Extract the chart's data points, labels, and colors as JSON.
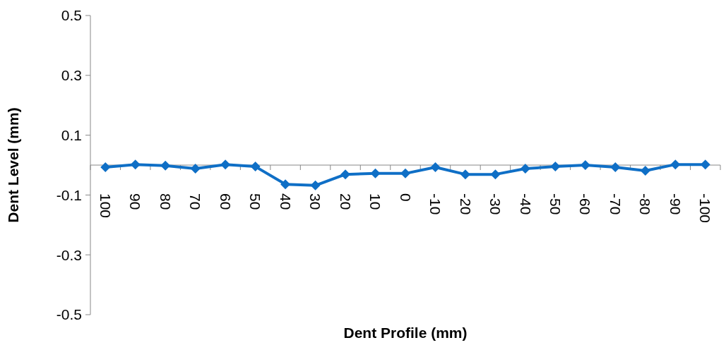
{
  "chart_data": {
    "type": "line",
    "xlabel": "Dent Profile (mm)",
    "ylabel": "Dent Level (mm)",
    "categories": [
      "100",
      "90",
      "80",
      "70",
      "60",
      "50",
      "40",
      "30",
      "20",
      "10",
      "0",
      "-10",
      "-20",
      "-30",
      "-40",
      "-50",
      "-60",
      "-70",
      "-80",
      "-90",
      "-100"
    ],
    "series": [
      {
        "color": "#0f6fc6",
        "values": [
          -0.007,
          0.002,
          -0.002,
          -0.012,
          0.002,
          -0.005,
          -0.064,
          -0.068,
          -0.031,
          -0.028,
          -0.028,
          -0.007,
          -0.031,
          -0.031,
          -0.012,
          -0.005,
          0,
          -0.007,
          -0.019,
          0.002,
          0.002
        ]
      }
    ],
    "ylim": [
      -0.5,
      0.5
    ],
    "yticks": [
      -0.5,
      -0.3,
      -0.1,
      0.1,
      0.3,
      0.5
    ],
    "grid": false,
    "marker": "diamond",
    "line_style": "solid"
  }
}
